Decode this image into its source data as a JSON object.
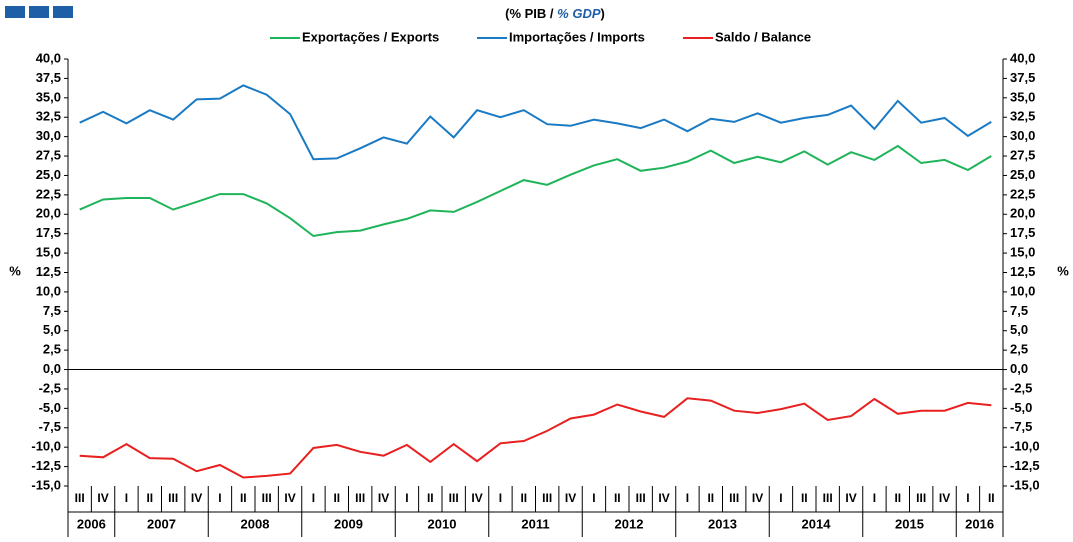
{
  "chart_data": {
    "type": "line",
    "title": [
      "(% PIB / ",
      "% GDP",
      ")"
    ],
    "y_label": "%",
    "categories": [
      "III",
      "IV",
      "I",
      "II",
      "III",
      "IV",
      "I",
      "II",
      "III",
      "IV",
      "I",
      "II",
      "III",
      "IV",
      "I",
      "II",
      "III",
      "IV",
      "I",
      "II",
      "III",
      "IV",
      "I",
      "II",
      "III",
      "IV",
      "I",
      "II",
      "III",
      "IV",
      "I",
      "II",
      "III",
      "IV",
      "I",
      "II",
      "III",
      "IV",
      "I",
      "II"
    ],
    "years": [
      "2006",
      "2007",
      "2008",
      "2009",
      "2010",
      "2011",
      "2012",
      "2013",
      "2014",
      "2015",
      "2016"
    ],
    "ylim": [
      -15,
      40
    ],
    "yticks": [
      {
        "value": 40,
        "label": "40,0"
      },
      {
        "value": 37.5,
        "label": "37,5"
      },
      {
        "value": 35,
        "label": "35,0"
      },
      {
        "value": 32.5,
        "label": "32,5"
      },
      {
        "value": 30,
        "label": "30,0"
      },
      {
        "value": 27.5,
        "label": "27,5"
      },
      {
        "value": 25,
        "label": "25,0"
      },
      {
        "value": 22.5,
        "label": "22,5"
      },
      {
        "value": 20,
        "label": "20,0"
      },
      {
        "value": 17.5,
        "label": "17,5"
      },
      {
        "value": 15,
        "label": "15,0"
      },
      {
        "value": 12.5,
        "label": "12,5"
      },
      {
        "value": 10,
        "label": "10,0"
      },
      {
        "value": 7.5,
        "label": "7,5"
      },
      {
        "value": 5,
        "label": "5,0"
      },
      {
        "value": 2.5,
        "label": "2,5"
      },
      {
        "value": 0,
        "label": "0,0"
      },
      {
        "value": -2.5,
        "label": "-2,5"
      },
      {
        "value": -5,
        "label": "-5,0"
      },
      {
        "value": -7.5,
        "label": "-7,5"
      },
      {
        "value": -10,
        "label": "-10,0"
      },
      {
        "value": -12.5,
        "label": "-12,5"
      },
      {
        "value": -15,
        "label": "-15,0"
      }
    ],
    "series": [
      {
        "name": "Exportações / Exports",
        "color": "#1fb45a",
        "values": [
          20.6,
          21.9,
          22.1,
          22.1,
          20.6,
          21.6,
          22.6,
          22.6,
          21.4,
          19.5,
          17.2,
          17.7,
          17.9,
          18.7,
          19.4,
          20.5,
          20.3,
          21.6,
          23.0,
          24.4,
          23.8,
          25.1,
          26.3,
          27.1,
          25.6,
          26.0,
          26.8,
          28.2,
          26.6,
          27.4,
          26.7,
          28.1,
          26.4,
          28.0,
          27.0,
          28.8,
          26.6,
          27.0,
          25.7,
          27.5
        ]
      },
      {
        "name": "Importações / Imports",
        "color": "#1a7ac4",
        "values": [
          31.8,
          33.2,
          31.7,
          33.4,
          32.2,
          34.8,
          34.9,
          36.6,
          35.4,
          32.9,
          27.1,
          27.2,
          28.5,
          29.9,
          29.1,
          32.6,
          29.9,
          33.4,
          32.5,
          33.4,
          31.6,
          31.4,
          32.2,
          31.7,
          31.1,
          32.2,
          30.7,
          32.3,
          31.9,
          33.0,
          31.8,
          32.4,
          32.8,
          34.0,
          31.0,
          34.6,
          31.8,
          32.4,
          30.1,
          31.9
        ]
      },
      {
        "name": "Saldo / Balance",
        "color": "#e8201f",
        "values": [
          -11.1,
          -11.3,
          -9.6,
          -11.4,
          -11.5,
          -13.1,
          -12.3,
          -13.9,
          -13.7,
          -13.4,
          -10.1,
          -9.7,
          -10.6,
          -11.1,
          -9.7,
          -11.9,
          -9.6,
          -11.8,
          -9.5,
          -9.2,
          -7.9,
          -6.3,
          -5.8,
          -4.5,
          -5.4,
          -6.1,
          -3.7,
          -4.0,
          -5.3,
          -5.6,
          -5.1,
          -4.4,
          -6.5,
          -6.0,
          -3.8,
          -5.7,
          -5.3,
          -5.3,
          -4.3,
          -4.6
        ]
      }
    ]
  }
}
